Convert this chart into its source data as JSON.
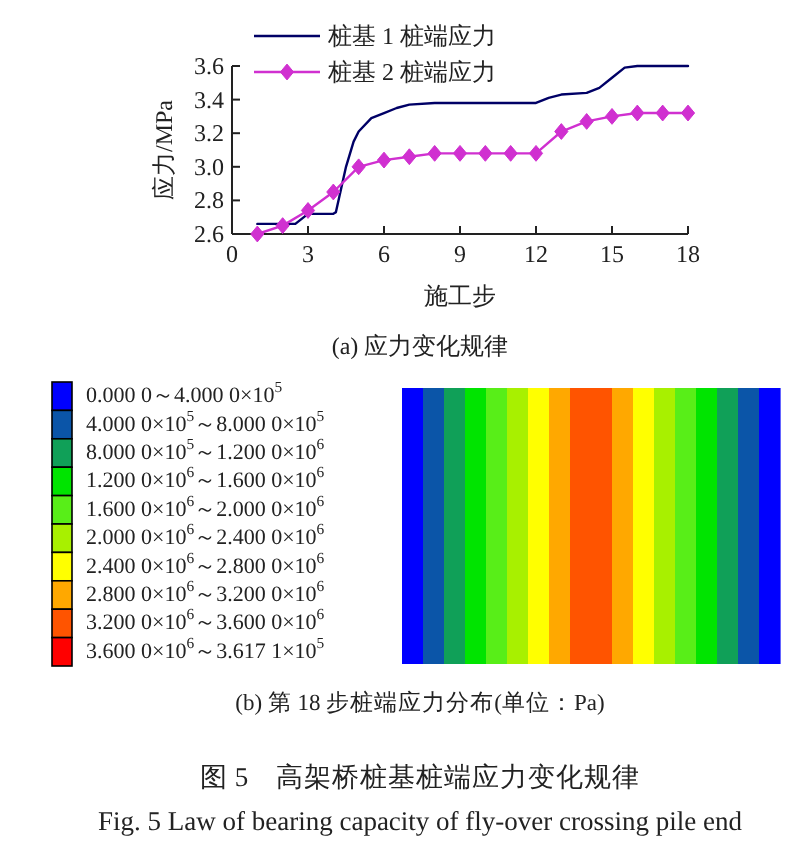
{
  "chart_data": [
    {
      "type": "line",
      "title": "(a) 应力变化规律",
      "xlabel": "施工步",
      "ylabel": "应力/MPa",
      "xlim": [
        0,
        18
      ],
      "xticks": [
        0,
        3,
        6,
        9,
        12,
        15,
        18
      ],
      "ylim": [
        2.6,
        3.6
      ],
      "yticks": [
        2.6,
        2.8,
        {
          "value": 3,
          "label": "3.0"
        },
        3.2,
        3.4,
        3.6
      ],
      "legend": "top",
      "series": [
        {
          "name": "桩基 1 桩端应力",
          "color": "#000066",
          "marker": "none",
          "x": [
            1,
            2.5,
            3,
            4,
            4.1,
            4.5,
            4.8,
            5,
            5.5,
            6,
            6.5,
            7,
            8,
            12,
            12.5,
            13,
            14,
            14.5,
            15,
            15.5,
            16,
            18
          ],
          "values": [
            2.66,
            2.66,
            2.72,
            2.72,
            2.73,
            3.0,
            3.15,
            3.21,
            3.29,
            3.32,
            3.35,
            3.37,
            3.38,
            3.38,
            3.41,
            3.43,
            3.44,
            3.47,
            3.53,
            3.59,
            3.6,
            3.6
          ]
        },
        {
          "name": "桩基 2 桩端应力",
          "color": "#d030d0",
          "marker": "diamond",
          "x": [
            1,
            2,
            3,
            4,
            5,
            6,
            7,
            8,
            9,
            10,
            11,
            12,
            13,
            14,
            15,
            16,
            17,
            18
          ],
          "values": [
            2.6,
            2.65,
            2.74,
            2.85,
            3.0,
            3.04,
            3.06,
            3.08,
            3.08,
            3.08,
            3.08,
            3.08,
            3.21,
            3.27,
            3.3,
            3.32,
            3.32,
            3.32
          ]
        }
      ]
    },
    {
      "type": "heatmap",
      "title": "(b) 第 18 步桩端应力分布(单位：Pa)",
      "categories": [
        null,
        null,
        null,
        null,
        null,
        null,
        null,
        null,
        null,
        null,
        null,
        null,
        null,
        null,
        null,
        null,
        null,
        null
      ],
      "y_categories": [
        null
      ],
      "cells": [
        [
          200000,
          600000,
          1000000,
          1400000,
          1800000,
          2200000,
          2600000,
          3000000,
          3400000,
          3400000,
          3000000,
          2600000,
          2200000,
          1800000,
          1400000,
          1000000,
          600000,
          200000
        ]
      ],
      "clim": [
        0,
        4000000
      ],
      "cticks": [
        {
          "value": 200000,
          "label": "0.000 0～4.000 0×10$^{5}$"
        },
        {
          "value": 600000,
          "label": "4.000 0×10$^{5}$～8.000 0×10$^{5}$"
        },
        {
          "value": 1000000,
          "label": "8.000 0×10$^{5}$～1.200 0×10$^{6}$"
        },
        {
          "value": 1400000,
          "label": "1.200 0×10$^{6}$～1.600 0×10$^{6}$"
        },
        {
          "value": 1800000,
          "label": "1.600 0×10$^{6}$～2.000 0×10$^{6}$"
        },
        {
          "value": 2200000,
          "label": "2.000 0×10$^{6}$～2.400 0×10$^{6}$"
        },
        {
          "value": 2600000,
          "label": "2.400 0×10$^{6}$～2.800 0×10$^{6}$"
        },
        {
          "value": 3000000,
          "label": "2.800 0×10$^{6}$～3.200 0×10$^{6}$"
        },
        {
          "value": 3400000,
          "label": "3.200 0×10$^{6}$～3.600 0×10$^{6}$"
        },
        {
          "value": 3800000,
          "label": "3.600 0×10$^{6}$～3.617 1×10$^{5}$"
        }
      ],
      "colors": [
        "#0000ff",
        "#0b55a8",
        "#10a058",
        "#00e400",
        "#58ee18",
        "#a8f000",
        "#ffff00",
        "#ffa800",
        "#ff5400",
        "#ff0000"
      ],
      "annotations": [
        "图 5　高架桥桩基桩端应力变化规律",
        "Fig. 5 Law of bearing capacity of fly-over crossing pile end"
      ]
    }
  ]
}
